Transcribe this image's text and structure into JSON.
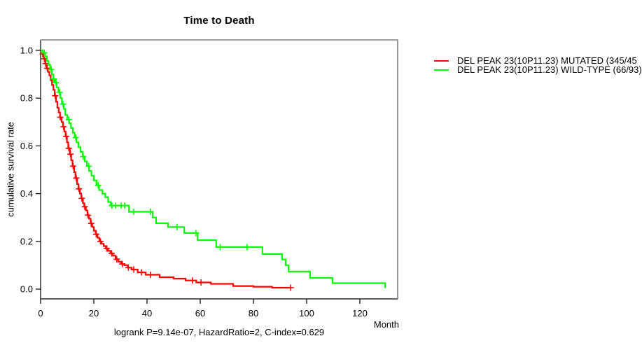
{
  "page": {
    "background": "#ffffff"
  },
  "chart_data": {
    "type": "line",
    "subtype": "kaplan-meier-survival-step",
    "title": "Time to Death",
    "xlabel": "Month",
    "ylabel": "cumulative survival rate",
    "footnote": "logrank P=9.14e-07, HazardRatio=2, C-index=0.629",
    "x_ticks": [
      0,
      20,
      40,
      60,
      80,
      100,
      120
    ],
    "y_tick_labels": [
      "0.0",
      "0.2",
      "0.4",
      "0.6",
      "0.8",
      "1.0"
    ],
    "xlim": [
      0,
      134
    ],
    "ylim": [
      0,
      1
    ],
    "grid": false,
    "axis_color": "#000000",
    "box_color": "#7f7f7f",
    "legend_position": "right-outside",
    "series": [
      {
        "name": "DEL PEAK 23(10P11.23) MUTATED (345/45",
        "color": "#ff0000",
        "end_month": 94,
        "steps": [
          [
            0,
            1.0
          ],
          [
            0.7,
            0.985
          ],
          [
            1.2,
            0.965
          ],
          [
            1.7,
            0.945
          ],
          [
            2.2,
            0.925
          ],
          [
            2.8,
            0.91
          ],
          [
            3.3,
            0.895
          ],
          [
            3.8,
            0.875
          ],
          [
            4.3,
            0.855
          ],
          [
            4.8,
            0.835
          ],
          [
            5.3,
            0.81
          ],
          [
            5.8,
            0.785
          ],
          [
            6.3,
            0.76
          ],
          [
            6.8,
            0.74
          ],
          [
            7.3,
            0.72
          ],
          [
            7.9,
            0.7
          ],
          [
            8.4,
            0.68
          ],
          [
            8.9,
            0.66
          ],
          [
            9.4,
            0.64
          ],
          [
            9.9,
            0.615
          ],
          [
            10.4,
            0.59
          ],
          [
            11.0,
            0.565
          ],
          [
            11.5,
            0.54
          ],
          [
            12.0,
            0.515
          ],
          [
            12.6,
            0.49
          ],
          [
            13.1,
            0.465
          ],
          [
            13.7,
            0.44
          ],
          [
            14.2,
            0.42
          ],
          [
            14.8,
            0.4
          ],
          [
            15.3,
            0.38
          ],
          [
            15.9,
            0.36
          ],
          [
            16.4,
            0.345
          ],
          [
            17.0,
            0.33
          ],
          [
            17.6,
            0.31
          ],
          [
            18.2,
            0.295
          ],
          [
            18.8,
            0.275
          ],
          [
            19.4,
            0.26
          ],
          [
            20.0,
            0.245
          ],
          [
            20.7,
            0.23
          ],
          [
            21.4,
            0.215
          ],
          [
            22.1,
            0.2
          ],
          [
            22.9,
            0.19
          ],
          [
            23.7,
            0.18
          ],
          [
            24.5,
            0.17
          ],
          [
            25.4,
            0.16
          ],
          [
            26.3,
            0.15
          ],
          [
            27.2,
            0.14
          ],
          [
            28.2,
            0.125
          ],
          [
            29.2,
            0.115
          ],
          [
            30.3,
            0.105
          ],
          [
            31.5,
            0.1
          ],
          [
            32.8,
            0.09
          ],
          [
            34.2,
            0.082
          ],
          [
            36.5,
            0.07
          ],
          [
            39.5,
            0.06
          ],
          [
            44.7,
            0.05
          ],
          [
            50.0,
            0.044
          ],
          [
            54.5,
            0.036
          ],
          [
            58.5,
            0.028
          ],
          [
            64.0,
            0.022
          ],
          [
            72.4,
            0.013
          ],
          [
            80.0,
            0.01
          ],
          [
            87.0,
            0.006
          ]
        ],
        "censor_marks": [
          [
            0.8,
            0.985
          ],
          [
            1.4,
            0.965
          ],
          [
            1.9,
            0.945
          ],
          [
            2.5,
            0.925
          ],
          [
            5.5,
            0.81
          ],
          [
            7.4,
            0.72
          ],
          [
            8.6,
            0.68
          ],
          [
            9.6,
            0.64
          ],
          [
            10.6,
            0.59
          ],
          [
            11.2,
            0.565
          ],
          [
            12.2,
            0.515
          ],
          [
            13.4,
            0.465
          ],
          [
            14.4,
            0.42
          ],
          [
            15.5,
            0.38
          ],
          [
            16.6,
            0.345
          ],
          [
            17.8,
            0.31
          ],
          [
            19.0,
            0.275
          ],
          [
            20.9,
            0.23
          ],
          [
            22.5,
            0.2
          ],
          [
            24.9,
            0.17
          ],
          [
            26.7,
            0.15
          ],
          [
            28.6,
            0.125
          ],
          [
            30.7,
            0.105
          ],
          [
            33.0,
            0.09
          ],
          [
            35.0,
            0.082
          ],
          [
            37.9,
            0.07
          ],
          [
            41.3,
            0.06
          ],
          [
            57.1,
            0.036
          ],
          [
            60.3,
            0.028
          ],
          [
            94.0,
            0.006
          ]
        ]
      },
      {
        "name": "DEL PEAK 23(10P11.23) WILD-TYPE (66/93)",
        "color": "#00ff00",
        "end_month": 129.5,
        "steps": [
          [
            0,
            1.0
          ],
          [
            0.8,
            0.99
          ],
          [
            1.6,
            0.975
          ],
          [
            2.4,
            0.955
          ],
          [
            3.0,
            0.94
          ],
          [
            3.6,
            0.92
          ],
          [
            4.2,
            0.9
          ],
          [
            4.8,
            0.88
          ],
          [
            5.4,
            0.865
          ],
          [
            6.0,
            0.845
          ],
          [
            6.7,
            0.825
          ],
          [
            7.4,
            0.8
          ],
          [
            8.0,
            0.775
          ],
          [
            8.7,
            0.755
          ],
          [
            9.3,
            0.73
          ],
          [
            10.0,
            0.71
          ],
          [
            10.7,
            0.695
          ],
          [
            11.4,
            0.675
          ],
          [
            12.1,
            0.655
          ],
          [
            12.8,
            0.635
          ],
          [
            13.5,
            0.615
          ],
          [
            14.2,
            0.595
          ],
          [
            15.0,
            0.575
          ],
          [
            15.8,
            0.555
          ],
          [
            16.6,
            0.535
          ],
          [
            17.4,
            0.515
          ],
          [
            18.2,
            0.495
          ],
          [
            19.1,
            0.475
          ],
          [
            20.0,
            0.455
          ],
          [
            21.0,
            0.435
          ],
          [
            22.0,
            0.415
          ],
          [
            23.2,
            0.4
          ],
          [
            24.3,
            0.385
          ],
          [
            25.4,
            0.365
          ],
          [
            26.4,
            0.35
          ],
          [
            33.2,
            0.324
          ],
          [
            42.1,
            0.3
          ],
          [
            43.4,
            0.276
          ],
          [
            47.9,
            0.26
          ],
          [
            54.0,
            0.235
          ],
          [
            59.0,
            0.205
          ],
          [
            66.0,
            0.176
          ],
          [
            83.4,
            0.147
          ],
          [
            90.8,
            0.124
          ],
          [
            92.1,
            0.1
          ],
          [
            93.2,
            0.074
          ],
          [
            101.3,
            0.047
          ],
          [
            109.7,
            0.025
          ],
          [
            129.5,
            0.005
          ]
        ],
        "censor_marks": [
          [
            1.4,
            0.99
          ],
          [
            4.0,
            0.92
          ],
          [
            4.9,
            0.88
          ],
          [
            5.8,
            0.865
          ],
          [
            7.1,
            0.825
          ],
          [
            8.4,
            0.775
          ],
          [
            10.6,
            0.71
          ],
          [
            13.2,
            0.635
          ],
          [
            16.0,
            0.555
          ],
          [
            18.1,
            0.515
          ],
          [
            21.6,
            0.435
          ],
          [
            26.8,
            0.35
          ],
          [
            28.2,
            0.35
          ],
          [
            30.3,
            0.35
          ],
          [
            31.6,
            0.35
          ],
          [
            35.0,
            0.324
          ],
          [
            41.3,
            0.324
          ],
          [
            51.3,
            0.26
          ],
          [
            58.4,
            0.235
          ],
          [
            67.5,
            0.176
          ],
          [
            77.6,
            0.176
          ]
        ]
      }
    ]
  }
}
